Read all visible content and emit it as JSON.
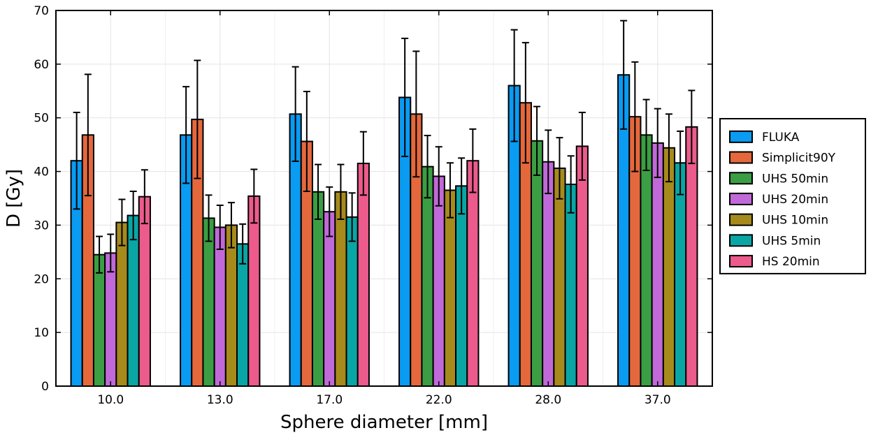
{
  "chart_data": {
    "type": "bar",
    "xlabel": "Sphere diameter [mm]",
    "ylabel": "D [Gy]",
    "ylim": [
      0,
      70
    ],
    "yticks": [
      0,
      10,
      20,
      30,
      40,
      50,
      60,
      70
    ],
    "grid": true,
    "legend_position": "right",
    "categories": [
      "10.0",
      "13.0",
      "17.0",
      "22.0",
      "28.0",
      "37.0"
    ],
    "series": [
      {
        "name": "FLUKA",
        "color": "#0a9bf2",
        "values": [
          42.0,
          46.8,
          50.7,
          53.8,
          56.0,
          58.0
        ],
        "errors": [
          9.0,
          9.0,
          8.8,
          11.0,
          10.4,
          10.1
        ]
      },
      {
        "name": "Simplicit90Y",
        "color": "#e5683c",
        "values": [
          46.8,
          49.7,
          45.6,
          50.7,
          52.8,
          50.2
        ],
        "errors": [
          11.3,
          11.0,
          9.3,
          11.7,
          11.2,
          10.2
        ]
      },
      {
        "name": "UHS 50min",
        "color": "#3b9e44",
        "values": [
          24.5,
          31.3,
          36.2,
          40.9,
          45.7,
          46.8
        ],
        "errors": [
          3.4,
          4.3,
          5.1,
          5.8,
          6.4,
          6.6
        ]
      },
      {
        "name": "UHS 20min",
        "color": "#c169d8",
        "values": [
          24.8,
          29.6,
          32.5,
          39.1,
          41.8,
          45.3
        ],
        "errors": [
          3.5,
          4.1,
          4.6,
          5.5,
          5.9,
          6.4
        ]
      },
      {
        "name": "UHS 10min",
        "color": "#a68a1c",
        "values": [
          30.5,
          30.0,
          36.2,
          36.5,
          40.6,
          44.4
        ],
        "errors": [
          4.3,
          4.2,
          5.1,
          5.1,
          5.7,
          6.3
        ]
      },
      {
        "name": "UHS 5min",
        "color": "#0aa6a6",
        "values": [
          31.8,
          26.5,
          31.5,
          37.3,
          37.6,
          41.6
        ],
        "errors": [
          4.5,
          3.7,
          4.5,
          5.2,
          5.3,
          5.9
        ]
      },
      {
        "name": "HS 20min",
        "color": "#ec5b8c",
        "values": [
          35.3,
          35.4,
          41.5,
          42.0,
          44.7,
          48.3
        ],
        "errors": [
          5.0,
          5.0,
          5.9,
          5.9,
          6.3,
          6.8
        ]
      }
    ]
  }
}
